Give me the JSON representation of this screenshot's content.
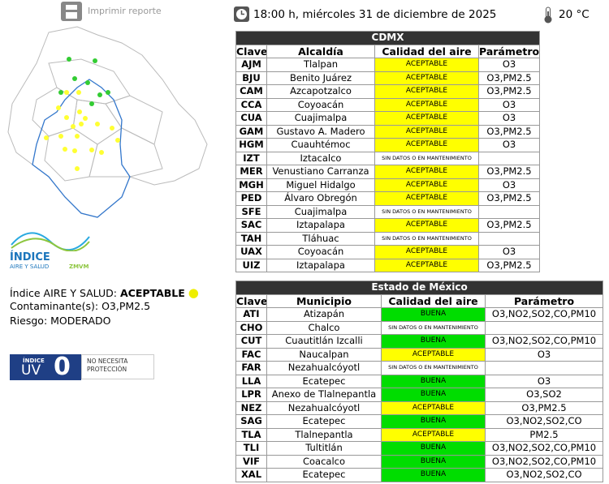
{
  "header": {
    "print_label": "Imprimir reporte",
    "datetime": "18:00 h, miércoles 31 de diciembre de 2025",
    "temperature": "20 °C"
  },
  "logo": {
    "line1": "ÍNDICE",
    "line2": "AIRE Y SALUD",
    "brand": "ZMVM"
  },
  "summary": {
    "index_label": "Índice AIRE Y SALUD:",
    "index_value": "ACEPTABLE",
    "pollutants_label": "Contaminante(s):",
    "pollutants": "O3,PM2.5",
    "risk_label": "Riesgo:",
    "risk": "MODERADO"
  },
  "uv": {
    "label1": "ÍNDICE",
    "label2": "UV",
    "value": "0",
    "message": "NO NECESITA PROTECCIÓN"
  },
  "tables": [
    {
      "title": "CDMX",
      "columns": [
        "Clave",
        "Alcaldía",
        "Calidad del aire",
        "Parámetro"
      ],
      "rows": [
        {
          "code": "AJM",
          "name": "Tlalpan",
          "quality": "ACEPTABLE",
          "color": "#ffff00",
          "params": "O3"
        },
        {
          "code": "BJU",
          "name": "Benito Juárez",
          "quality": "ACEPTABLE",
          "color": "#ffff00",
          "params": "O3,PM2.5"
        },
        {
          "code": "CAM",
          "name": "Azcapotzalco",
          "quality": "ACEPTABLE",
          "color": "#ffff00",
          "params": "O3,PM2.5"
        },
        {
          "code": "CCA",
          "name": "Coyoacán",
          "quality": "ACEPTABLE",
          "color": "#ffff00",
          "params": "O3"
        },
        {
          "code": "CUA",
          "name": "Cuajimalpa",
          "quality": "ACEPTABLE",
          "color": "#ffff00",
          "params": "O3"
        },
        {
          "code": "GAM",
          "name": "Gustavo A. Madero",
          "quality": "ACEPTABLE",
          "color": "#ffff00",
          "params": "O3,PM2.5"
        },
        {
          "code": "HGM",
          "name": "Cuauhtémoc",
          "quality": "ACEPTABLE",
          "color": "#ffff00",
          "params": "O3"
        },
        {
          "code": "IZT",
          "name": "Iztacalco",
          "quality": "SIN DATOS O EN MANTENIMIENTO",
          "color": "#ffffff"
        },
        {
          "code": "MER",
          "name": "Venustiano Carranza",
          "quality": "ACEPTABLE",
          "color": "#ffff00",
          "params": "O3,PM2.5"
        },
        {
          "code": "MGH",
          "name": "Miguel Hidalgo",
          "quality": "ACEPTABLE",
          "color": "#ffff00",
          "params": "O3"
        },
        {
          "code": "PED",
          "name": "Álvaro Obregón",
          "quality": "ACEPTABLE",
          "color": "#ffff00",
          "params": "O3,PM2.5"
        },
        {
          "code": "SFE",
          "name": "Cuajimalpa",
          "quality": "SIN DATOS O EN MANTENIMIENTO",
          "color": "#ffffff"
        },
        {
          "code": "SAC",
          "name": "Iztapalapa",
          "quality": "ACEPTABLE",
          "color": "#ffff00",
          "params": "O3,PM2.5"
        },
        {
          "code": "TAH",
          "name": "Tláhuac",
          "quality": "SIN DATOS O EN MANTENIMIENTO",
          "color": "#ffffff"
        },
        {
          "code": "UAX",
          "name": "Coyoacán",
          "quality": "ACEPTABLE",
          "color": "#ffff00",
          "params": "O3"
        },
        {
          "code": "UIZ",
          "name": "Iztapalapa",
          "quality": "ACEPTABLE",
          "color": "#ffff00",
          "params": "O3,PM2.5"
        }
      ]
    },
    {
      "title": "Estado de México",
      "columns": [
        "Clave",
        "Municipio",
        "Calidad del aire",
        "Parámetro"
      ],
      "rows": [
        {
          "code": "ATI",
          "name": "Atizapán",
          "quality": "BUENA",
          "color": "#00dd00",
          "params": "O3,NO2,SO2,CO,PM10"
        },
        {
          "code": "CHO",
          "name": "Chalco",
          "quality": "SIN DATOS O EN MANTENIMIENTO",
          "color": "#ffffff"
        },
        {
          "code": "CUT",
          "name": "Cuautitlán Izcalli",
          "quality": "BUENA",
          "color": "#00dd00",
          "params": "O3,NO2,SO2,CO,PM10"
        },
        {
          "code": "FAC",
          "name": "Naucalpan",
          "quality": "ACEPTABLE",
          "color": "#ffff00",
          "params": "O3"
        },
        {
          "code": "FAR",
          "name": "Nezahualcóyotl",
          "quality": "SIN DATOS O EN MANTENIMIENTO",
          "color": "#ffffff"
        },
        {
          "code": "LLA",
          "name": "Ecatepec",
          "quality": "BUENA",
          "color": "#00dd00",
          "params": "O3"
        },
        {
          "code": "LPR",
          "name": "Anexo de Tlalnepantla",
          "quality": "BUENA",
          "color": "#00dd00",
          "params": "O3,SO2"
        },
        {
          "code": "NEZ",
          "name": "Nezahualcóyotl",
          "quality": "ACEPTABLE",
          "color": "#ffff00",
          "params": "O3,PM2.5"
        },
        {
          "code": "SAG",
          "name": "Ecatepec",
          "quality": "BUENA",
          "color": "#00dd00",
          "params": "O3,NO2,SO2,CO"
        },
        {
          "code": "TLA",
          "name": "Tlalnepantla",
          "quality": "ACEPTABLE",
          "color": "#ffff00",
          "params": "PM2.5"
        },
        {
          "code": "TLI",
          "name": "Tultitlán",
          "quality": "BUENA",
          "color": "#00dd00",
          "params": "O3,NO2,SO2,CO,PM10"
        },
        {
          "code": "VIF",
          "name": "Coacalco",
          "quality": "BUENA",
          "color": "#00dd00",
          "params": "O3,NO2,SO2,CO,PM10"
        },
        {
          "code": "XAL",
          "name": "Ecatepec",
          "quality": "BUENA",
          "color": "#00dd00",
          "params": "O3,NO2,SO2,CO"
        }
      ]
    }
  ]
}
